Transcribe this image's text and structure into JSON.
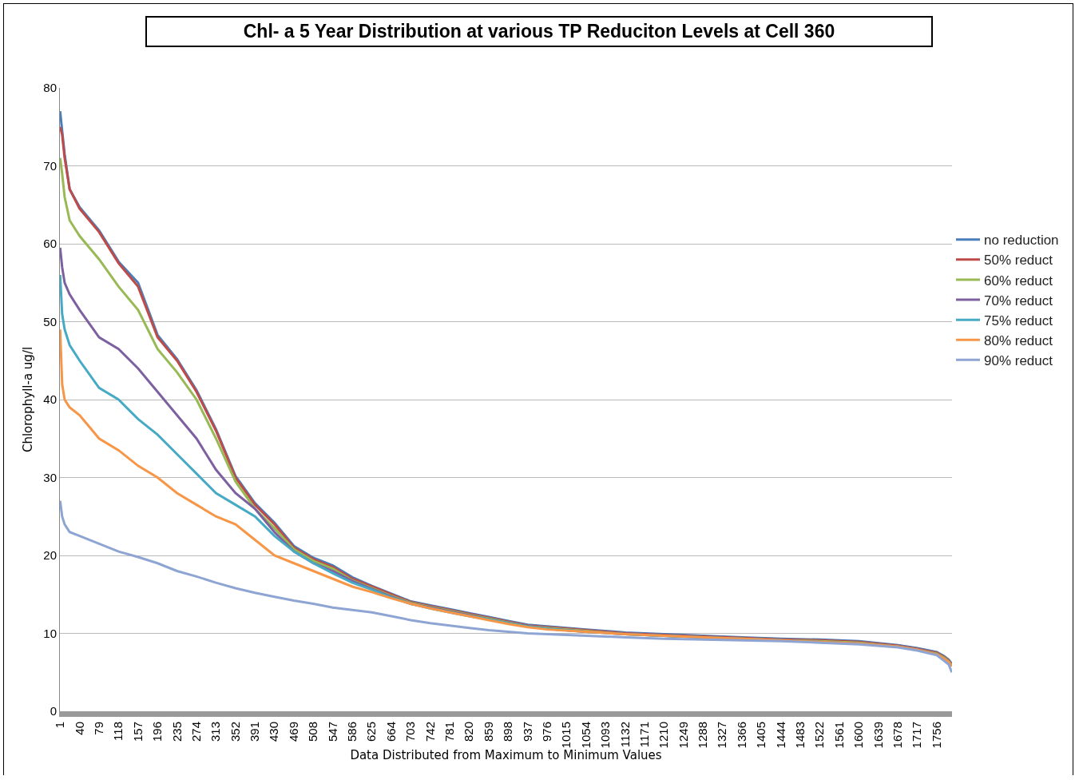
{
  "chart_data": {
    "type": "line",
    "title": "Chl- a 5 Year Distribution at various TP Reduciton Levels at Cell 360",
    "xlabel": "Data Distributed from Maximum to Minimum Values",
    "ylabel": "Chlorophyll-a ug/l",
    "x": [
      1,
      5,
      10,
      20,
      40,
      79,
      118,
      157,
      196,
      235,
      274,
      313,
      352,
      391,
      430,
      469,
      508,
      547,
      586,
      625,
      664,
      703,
      742,
      781,
      820,
      859,
      898,
      937,
      976,
      1054,
      1132,
      1210,
      1288,
      1366,
      1444,
      1522,
      1600,
      1678,
      1717,
      1756,
      1770,
      1780,
      1786
    ],
    "series": [
      {
        "name": "no reduction",
        "color": "#4a7ebb",
        "values": [
          77,
          74.5,
          71.5,
          67,
          64.7,
          61.7,
          57.7,
          55,
          48.3,
          45.2,
          41.2,
          36.2,
          30.2,
          26.7,
          24.2,
          21.2,
          19.7,
          18.7,
          17.2,
          16.1,
          15.1,
          14.1,
          13.6,
          13.1,
          12.6,
          12.1,
          11.6,
          11.1,
          10.9,
          10.5,
          10.1,
          9.9,
          9.7,
          9.5,
          9.3,
          9.2,
          9,
          8.5,
          8.1,
          7.6,
          7.1,
          6.6,
          6.1
        ]
      },
      {
        "name": "50% reduct",
        "color": "#be4b48",
        "values": [
          75,
          74,
          71,
          67,
          64.5,
          61.5,
          57.5,
          54.5,
          48,
          45,
          41,
          36,
          30,
          26.5,
          24,
          21,
          19.5,
          18.5,
          17,
          16,
          15,
          14,
          13.5,
          13,
          12.5,
          12,
          11.5,
          11,
          10.8,
          10.4,
          10,
          9.8,
          9.6,
          9.4,
          9.2,
          9.1,
          8.9,
          8.4,
          8,
          7.5,
          7,
          6.5,
          6
        ]
      },
      {
        "name": "60% reduct",
        "color": "#98b954",
        "values": [
          71,
          69,
          66,
          63,
          61,
          58,
          54.5,
          51.5,
          46.5,
          43.5,
          40,
          35,
          29.5,
          26,
          23.5,
          20.8,
          19.3,
          18.3,
          16.8,
          15.8,
          14.8,
          13.9,
          13.4,
          12.9,
          12.4,
          11.9,
          11.4,
          10.9,
          10.7,
          10.3,
          9.9,
          9.7,
          9.5,
          9.3,
          9.1,
          9,
          8.8,
          8.3,
          7.9,
          7.4,
          6.9,
          6.4,
          5.9
        ]
      },
      {
        "name": "70% reduct",
        "color": "#7d60a0",
        "values": [
          59.5,
          57,
          55,
          53.5,
          51.5,
          48,
          46.5,
          44,
          41,
          38,
          35,
          31,
          28,
          26,
          23,
          20.5,
          19,
          18,
          16.7,
          15.7,
          14.7,
          13.8,
          13.3,
          12.8,
          12.3,
          11.8,
          11.3,
          10.9,
          10.6,
          10.2,
          9.9,
          9.7,
          9.5,
          9.3,
          9.1,
          8.9,
          8.7,
          8.3,
          7.9,
          7.3,
          6.8,
          6.3,
          5.8
        ]
      },
      {
        "name": "75% reduct",
        "color": "#46aac5",
        "values": [
          56,
          51,
          49,
          47,
          45,
          41.5,
          40,
          37.5,
          35.5,
          33,
          30.5,
          28,
          26.5,
          25,
          22.5,
          20.5,
          19,
          17.7,
          16.5,
          15.6,
          14.6,
          13.8,
          13.2,
          12.7,
          12.2,
          11.8,
          11.3,
          10.9,
          10.6,
          10.2,
          9.9,
          9.7,
          9.5,
          9.3,
          9.1,
          8.9,
          8.7,
          8.3,
          7.9,
          7.3,
          6.8,
          6.3,
          5.8
        ]
      },
      {
        "name": "80% reduct",
        "color": "#f79646",
        "values": [
          49,
          42,
          40,
          39,
          38,
          35,
          33.5,
          31.5,
          30,
          28,
          26.5,
          25,
          24,
          22,
          20,
          19,
          18,
          17,
          16,
          15.3,
          14.5,
          13.8,
          13.2,
          12.7,
          12.2,
          11.7,
          11.2,
          10.8,
          10.5,
          10.2,
          9.9,
          9.7,
          9.5,
          9.3,
          9.1,
          8.9,
          8.7,
          8.3,
          7.9,
          7.3,
          6.8,
          6.3,
          5.8
        ]
      },
      {
        "name": "90% reduct",
        "color": "#8ea5d4",
        "values": [
          27,
          25,
          24,
          23,
          22.5,
          21.5,
          20.5,
          19.8,
          19,
          18,
          17.3,
          16.5,
          15.8,
          15.2,
          14.7,
          14.2,
          13.8,
          13.3,
          13,
          12.7,
          12.2,
          11.7,
          11.3,
          11,
          10.7,
          10.4,
          10.2,
          10,
          9.9,
          9.7,
          9.5,
          9.3,
          9.2,
          9.1,
          9,
          8.8,
          8.6,
          8.2,
          7.8,
          7.2,
          6.5,
          6,
          5
        ]
      }
    ],
    "xlim": [
      0.5,
      1786.5
    ],
    "xticks": [
      1,
      40,
      79,
      118,
      157,
      196,
      235,
      274,
      313,
      352,
      391,
      430,
      469,
      508,
      547,
      586,
      625,
      664,
      703,
      742,
      781,
      820,
      859,
      898,
      937,
      976,
      1015,
      1054,
      1093,
      1132,
      1171,
      1210,
      1249,
      1288,
      1327,
      1366,
      1405,
      1444,
      1483,
      1522,
      1561,
      1600,
      1639,
      1678,
      1717,
      1756
    ],
    "ylim": [
      0,
      80
    ],
    "yticks": [
      0,
      10,
      20,
      30,
      40,
      50,
      60,
      70,
      80
    ],
    "grid": "y",
    "legend": "right",
    "marker": "none",
    "line_style": "solid"
  }
}
